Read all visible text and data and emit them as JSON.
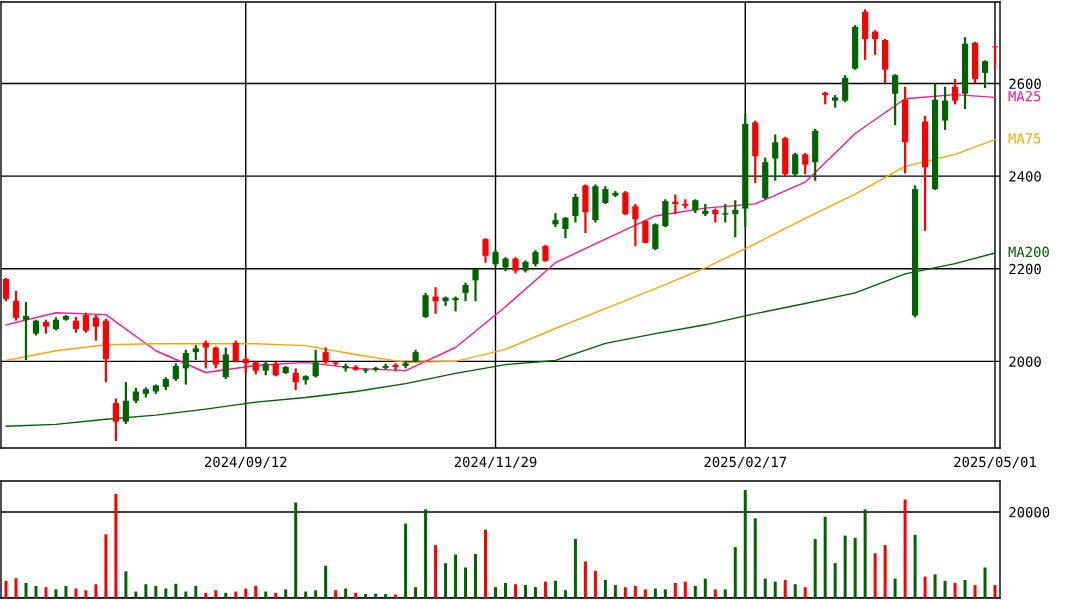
{
  "chart_data": [
    {
      "type": "candlestick",
      "categories": [
        null,
        null,
        null,
        null,
        null,
        null,
        null,
        null,
        null,
        null,
        null,
        null,
        null,
        null,
        null,
        null,
        null,
        null,
        null,
        null,
        null,
        null,
        null,
        null,
        "2024/09/12",
        null,
        null,
        null,
        null,
        null,
        null,
        null,
        null,
        null,
        null,
        null,
        null,
        null,
        null,
        null,
        null,
        null,
        null,
        null,
        null,
        null,
        null,
        null,
        null,
        "2024/11/29",
        null,
        null,
        null,
        null,
        null,
        null,
        null,
        null,
        null,
        null,
        null,
        null,
        null,
        null,
        null,
        null,
        null,
        null,
        null,
        null,
        null,
        null,
        null,
        null,
        "2025/02/17",
        null,
        null,
        null,
        null,
        null,
        null,
        null,
        null,
        null,
        null,
        null,
        null,
        null,
        null,
        null,
        null,
        null,
        null,
        null,
        null,
        null,
        null,
        null,
        null,
        "2025/05/01"
      ],
      "ohlc": [
        [
          2135,
          2180,
          2130,
          2178
        ],
        [
          2094,
          2152,
          2088,
          2131
        ],
        [
          2098,
          2128,
          2003,
          2090
        ],
        [
          2088,
          2090,
          2056,
          2060
        ],
        [
          2075,
          2090,
          2060,
          2085
        ],
        [
          2090,
          2095,
          2067,
          2070
        ],
        [
          2098,
          2100,
          2088,
          2090
        ],
        [
          2070,
          2096,
          2062,
          2088
        ],
        [
          2066,
          2105,
          2062,
          2100
        ],
        [
          2075,
          2100,
          2045,
          2095
        ],
        [
          2005,
          2092,
          1955,
          2088
        ],
        [
          1870,
          1920,
          1828,
          1910
        ],
        [
          1915,
          1955,
          1865,
          1870
        ],
        [
          1935,
          1943,
          1910,
          1915
        ],
        [
          1940,
          1944,
          1922,
          1930
        ],
        [
          1948,
          1950,
          1930,
          1935
        ],
        [
          1962,
          1966,
          1938,
          1945
        ],
        [
          1990,
          1996,
          1958,
          1962
        ],
        [
          2018,
          2025,
          1950,
          1985
        ],
        [
          2028,
          2035,
          2003,
          2020
        ],
        [
          2030,
          2045,
          1985,
          2040
        ],
        [
          1993,
          2032,
          1985,
          2030
        ],
        [
          2015,
          2030,
          1962,
          1966
        ],
        [
          2000,
          2045,
          1998,
          2040
        ],
        [
          1996,
          2010,
          1976,
          2005
        ],
        [
          1980,
          2000,
          1972,
          1998
        ],
        [
          1995,
          2000,
          1970,
          1980
        ],
        [
          1970,
          2000,
          1968,
          1995
        ],
        [
          1988,
          1990,
          1973,
          1975
        ],
        [
          1955,
          1985,
          1938,
          1975
        ],
        [
          1968,
          1970,
          1950,
          1960
        ],
        [
          1998,
          2025,
          1965,
          1968
        ],
        [
          1998,
          2030,
          1995,
          2020
        ],
        [
          1995,
          2000,
          1990,
          1998
        ],
        [
          1990,
          1995,
          1978,
          1985
        ],
        [
          1982,
          1992,
          1980,
          1988
        ],
        [
          1983,
          1985,
          1975,
          1980
        ],
        [
          1986,
          1988,
          1978,
          1982
        ],
        [
          1990,
          1995,
          1982,
          1986
        ],
        [
          1988,
          1996,
          1980,
          1992
        ],
        [
          1996,
          2000,
          1985,
          1990
        ],
        [
          2020,
          2025,
          1998,
          2000
        ],
        [
          2143,
          2148,
          2094,
          2096
        ],
        [
          2130,
          2160,
          2103,
          2140
        ],
        [
          2138,
          2140,
          2120,
          2130
        ],
        [
          2137,
          2140,
          2108,
          2132
        ],
        [
          2165,
          2170,
          2130,
          2148
        ],
        [
          2200,
          2200,
          2130,
          2175
        ],
        [
          2228,
          2266,
          2213,
          2264
        ],
        [
          2236,
          2240,
          2205,
          2210
        ],
        [
          2222,
          2225,
          2195,
          2203
        ],
        [
          2196,
          2225,
          2190,
          2222
        ],
        [
          2215,
          2218,
          2192,
          2196
        ],
        [
          2236,
          2240,
          2205,
          2210
        ],
        [
          2217,
          2252,
          2215,
          2249
        ],
        [
          2305,
          2320,
          2290,
          2296
        ],
        [
          2310,
          2312,
          2266,
          2286
        ],
        [
          2355,
          2362,
          2300,
          2314
        ],
        [
          2322,
          2382,
          2277,
          2380
        ],
        [
          2378,
          2382,
          2300,
          2305
        ],
        [
          2372,
          2378,
          2340,
          2342
        ],
        [
          2364,
          2368,
          2355,
          2358
        ],
        [
          2318,
          2368,
          2316,
          2365
        ],
        [
          2307,
          2340,
          2249,
          2335
        ],
        [
          2256,
          2305,
          2255,
          2303
        ],
        [
          2296,
          2298,
          2240,
          2243
        ],
        [
          2346,
          2350,
          2290,
          2292
        ],
        [
          2340,
          2360,
          2318,
          2345
        ],
        [
          2336,
          2350,
          2330,
          2340
        ],
        [
          2348,
          2350,
          2320,
          2326
        ],
        [
          2325,
          2340,
          2314,
          2318
        ],
        [
          2318,
          2330,
          2300,
          2327
        ],
        [
          2320,
          2340,
          2300,
          2317
        ],
        [
          2327,
          2348,
          2268,
          2318
        ],
        [
          2513,
          2535,
          2290,
          2330
        ],
        [
          2443,
          2520,
          2385,
          2516
        ],
        [
          2430,
          2440,
          2350,
          2353
        ],
        [
          2473,
          2490,
          2390,
          2438
        ],
        [
          2404,
          2485,
          2400,
          2482
        ],
        [
          2447,
          2450,
          2400,
          2404
        ],
        [
          2425,
          2450,
          2404,
          2447
        ],
        [
          2498,
          2502,
          2390,
          2430
        ],
        [
          2575,
          2582,
          2555,
          2580
        ],
        [
          2570,
          2575,
          2548,
          2563
        ],
        [
          2612,
          2618,
          2560,
          2563
        ],
        [
          2722,
          2726,
          2630,
          2632
        ],
        [
          2696,
          2760,
          2651,
          2755
        ],
        [
          2696,
          2715,
          2662,
          2712
        ],
        [
          2630,
          2696,
          2600,
          2694
        ],
        [
          2618,
          2620,
          2510,
          2578
        ],
        [
          2473,
          2593,
          2406,
          2565
        ],
        [
          2372,
          2380,
          2095,
          2099
        ],
        [
          2419,
          2530,
          2282,
          2518
        ],
        [
          2565,
          2600,
          2370,
          2372
        ],
        [
          2563,
          2593,
          2500,
          2520
        ],
        [
          2563,
          2610,
          2555,
          2593
        ],
        [
          2686,
          2700,
          2545,
          2578
        ],
        [
          2610,
          2690,
          2600,
          2688
        ],
        [
          2648,
          2650,
          2590,
          2623
        ],
        [
          2678,
          2682,
          2630,
          2680
        ]
      ],
      "colors": [
        "#ff0000",
        "#ff0000",
        "#006400",
        "#006400",
        "#ff0000",
        "#006400",
        "#006400",
        "#ff0000",
        "#ff0000",
        "#ff0000",
        "#ff0000",
        "#ff0000",
        "#006400",
        "#006400",
        "#006400",
        "#006400",
        "#006400",
        "#006400",
        "#006400",
        "#006400",
        "#ff0000",
        "#ff0000",
        "#006400",
        "#ff0000",
        "#ff0000",
        "#ff0000",
        "#006400",
        "#ff0000",
        "#006400",
        "#ff0000",
        "#006400",
        "#006400",
        "#ff0000",
        "#ff0000",
        "#006400",
        "#ff0000",
        "#006400",
        "#006400",
        "#006400",
        "#ff0000",
        "#006400",
        "#006400",
        "#006400",
        "#ff0000",
        "#006400",
        "#006400",
        "#006400",
        "#006400",
        "#ff0000",
        "#006400",
        "#006400",
        "#ff0000",
        "#006400",
        "#006400",
        "#ff0000",
        "#006400",
        "#006400",
        "#006400",
        "#ff0000",
        "#006400",
        "#006400",
        "#006400",
        "#ff0000",
        "#ff0000",
        "#ff0000",
        "#006400",
        "#006400",
        "#ff0000",
        "#ff0000",
        "#006400",
        "#006400",
        "#ff0000",
        "#006400",
        "#006400",
        "#006400",
        "#ff0000",
        "#006400",
        "#006400",
        "#ff0000",
        "#006400",
        "#ff0000",
        "#006400",
        "#ff0000",
        "#006400",
        "#006400",
        "#006400",
        "#ff0000",
        "#ff0000",
        "#ff0000",
        "#006400",
        "#ff0000",
        "#006400",
        "#ff0000",
        "#006400",
        "#006400",
        "#ff0000",
        "#006400",
        "#ff0000",
        "#006400",
        "#ff0000"
      ],
      "series": [
        {
          "type": "line",
          "name": "MA25",
          "color": "#ff1493",
          "values": [
            2079,
            null,
            null,
            null,
            null,
            2105,
            null,
            null,
            null,
            null,
            2101,
            null,
            null,
            null,
            null,
            2023,
            null,
            null,
            null,
            null,
            1976,
            null,
            null,
            null,
            null,
            1991,
            null,
            null,
            null,
            null,
            1998,
            null,
            null,
            null,
            null,
            1985,
            null,
            null,
            null,
            null,
            1980,
            null,
            null,
            null,
            null,
            2030,
            null,
            null,
            null,
            null,
            2118,
            null,
            null,
            null,
            null,
            2213,
            null,
            null,
            null,
            null,
            2264,
            null,
            null,
            null,
            null,
            2314,
            null,
            null,
            null,
            null,
            2331,
            null,
            null,
            null,
            null,
            2340,
            null,
            null,
            null,
            null,
            2387,
            null,
            null,
            null,
            null,
            2492,
            null,
            null,
            null,
            null,
            2567,
            null,
            null,
            null,
            null,
            2576,
            null,
            null,
            null,
            2570
          ]
        },
        {
          "type": "line",
          "name": "MA75",
          "color": "#ffa500",
          "values": [
            2002,
            null,
            null,
            null,
            null,
            2023,
            null,
            null,
            null,
            null,
            2036,
            null,
            null,
            null,
            null,
            2038,
            null,
            null,
            null,
            null,
            2038,
            null,
            null,
            null,
            null,
            2038,
            null,
            null,
            null,
            null,
            2034,
            null,
            null,
            null,
            null,
            2015,
            null,
            null,
            null,
            null,
            1998,
            null,
            null,
            null,
            null,
            2000,
            null,
            null,
            null,
            null,
            2026,
            null,
            null,
            null,
            null,
            2071,
            null,
            null,
            null,
            null,
            2114,
            null,
            null,
            null,
            null,
            2157,
            null,
            null,
            null,
            null,
            2202,
            null,
            null,
            null,
            null,
            2254,
            null,
            null,
            null,
            null,
            2309,
            null,
            null,
            null,
            null,
            2361,
            null,
            null,
            null,
            null,
            2421,
            null,
            null,
            null,
            null,
            2447,
            null,
            null,
            null,
            2479
          ]
        },
        {
          "type": "line",
          "name": "MA200",
          "color": "#006400",
          "values": [
            1860,
            null,
            null,
            null,
            null,
            1864,
            null,
            null,
            null,
            null,
            1875,
            null,
            null,
            null,
            null,
            1884,
            null,
            null,
            null,
            null,
            1897,
            null,
            null,
            null,
            null,
            1912,
            null,
            null,
            null,
            null,
            1922,
            null,
            null,
            null,
            null,
            1935,
            null,
            null,
            null,
            null,
            1952,
            null,
            null,
            null,
            null,
            1974,
            null,
            null,
            null,
            null,
            1993,
            null,
            null,
            null,
            null,
            2002,
            null,
            null,
            null,
            null,
            2039,
            null,
            null,
            null,
            null,
            2060,
            null,
            null,
            null,
            null,
            2079,
            null,
            null,
            null,
            null,
            2103,
            null,
            null,
            null,
            null,
            2125,
            null,
            null,
            null,
            null,
            2148,
            null,
            null,
            null,
            null,
            2189,
            null,
            null,
            null,
            null,
            2211,
            null,
            null,
            null,
            2234
          ]
        }
      ],
      "ylim": [
        1813,
        2776
      ],
      "yticks": [
        2000,
        2200,
        2400,
        2600
      ],
      "grid": true
    },
    {
      "type": "bar",
      "categories": [
        null,
        null,
        null,
        null,
        null,
        null,
        null,
        null,
        null,
        null,
        null,
        null,
        null,
        null,
        null,
        null,
        null,
        null,
        null,
        null,
        null,
        null,
        null,
        null,
        "2024/09/12",
        null,
        null,
        null,
        null,
        null,
        null,
        null,
        null,
        null,
        null,
        null,
        null,
        null,
        null,
        null,
        null,
        null,
        null,
        null,
        null,
        null,
        null,
        null,
        null,
        "2024/11/29",
        null,
        null,
        null,
        null,
        null,
        null,
        null,
        null,
        null,
        null,
        null,
        null,
        null,
        null,
        null,
        null,
        null,
        null,
        null,
        null,
        null,
        null,
        null,
        null,
        "2025/02/17",
        null,
        null,
        null,
        null,
        null,
        null,
        null,
        null,
        null,
        null,
        null,
        null,
        null,
        null,
        null,
        null,
        null,
        null,
        null,
        null,
        null,
        null,
        null,
        null,
        "2025/05/01"
      ],
      "values": [
        4000,
        4600,
        3500,
        2800,
        2500,
        2000,
        2800,
        2200,
        1800,
        3200,
        14800,
        24200,
        6200,
        1500,
        3200,
        2800,
        2200,
        3300,
        1500,
        2800,
        1200,
        1800,
        1200,
        1500,
        2200,
        2800,
        1500,
        1200,
        2000,
        22200,
        1500,
        1800,
        7500,
        1800,
        2200,
        1200,
        900,
        1000,
        900,
        800,
        17300,
        2500,
        20600,
        12300,
        8100,
        10100,
        7100,
        10200,
        15900,
        2500,
        3500,
        3200,
        3000,
        2500,
        3800,
        4000,
        1800,
        13700,
        8500,
        6300,
        4200,
        3000,
        2500,
        2800,
        2000,
        2200,
        2000,
        3500,
        3800,
        2800,
        4500,
        2000,
        2000,
        11800,
        25100,
        18500,
        4500,
        3800,
        4200,
        3200,
        2500,
        13700,
        18900,
        8100,
        14500,
        14000,
        20600,
        10400,
        12300,
        4500,
        22900,
        14700,
        5000,
        5500,
        4000,
        3500,
        4200,
        3000,
        7100,
        3000
      ],
      "colors": [
        "#ff0000",
        "#ff0000",
        "#006400",
        "#006400",
        "#ff0000",
        "#006400",
        "#006400",
        "#ff0000",
        "#ff0000",
        "#ff0000",
        "#ff0000",
        "#ff0000",
        "#006400",
        "#006400",
        "#006400",
        "#006400",
        "#006400",
        "#006400",
        "#006400",
        "#006400",
        "#ff0000",
        "#ff0000",
        "#006400",
        "#ff0000",
        "#ff0000",
        "#ff0000",
        "#006400",
        "#ff0000",
        "#006400",
        "#006400",
        "#006400",
        "#006400",
        "#006400",
        "#ff0000",
        "#006400",
        "#ff0000",
        "#006400",
        "#006400",
        "#006400",
        "#ff0000",
        "#006400",
        "#006400",
        "#006400",
        "#ff0000",
        "#006400",
        "#006400",
        "#006400",
        "#006400",
        "#ff0000",
        "#006400",
        "#006400",
        "#ff0000",
        "#006400",
        "#006400",
        "#ff0000",
        "#006400",
        "#006400",
        "#006400",
        "#ff0000",
        "#ff0000",
        "#006400",
        "#006400",
        "#ff0000",
        "#ff0000",
        "#ff0000",
        "#006400",
        "#006400",
        "#ff0000",
        "#ff0000",
        "#006400",
        "#006400",
        "#ff0000",
        "#006400",
        "#006400",
        "#006400",
        "#006400",
        "#006400",
        "#006400",
        "#ff0000",
        "#006400",
        "#ff0000",
        "#006400",
        "#006400",
        "#006400",
        "#006400",
        "#006400",
        "#006400",
        "#ff0000",
        "#ff0000",
        "#006400",
        "#ff0000",
        "#006400",
        "#ff0000",
        "#006400",
        "#006400",
        "#ff0000",
        "#006400",
        "#ff0000",
        "#006400",
        "#ff0000"
      ],
      "ylim": [
        0,
        27200
      ],
      "yticks": [
        {
          "value": 0,
          "label": null
        },
        20000
      ],
      "grid": "y",
      "tick_labels": "y"
    }
  ]
}
